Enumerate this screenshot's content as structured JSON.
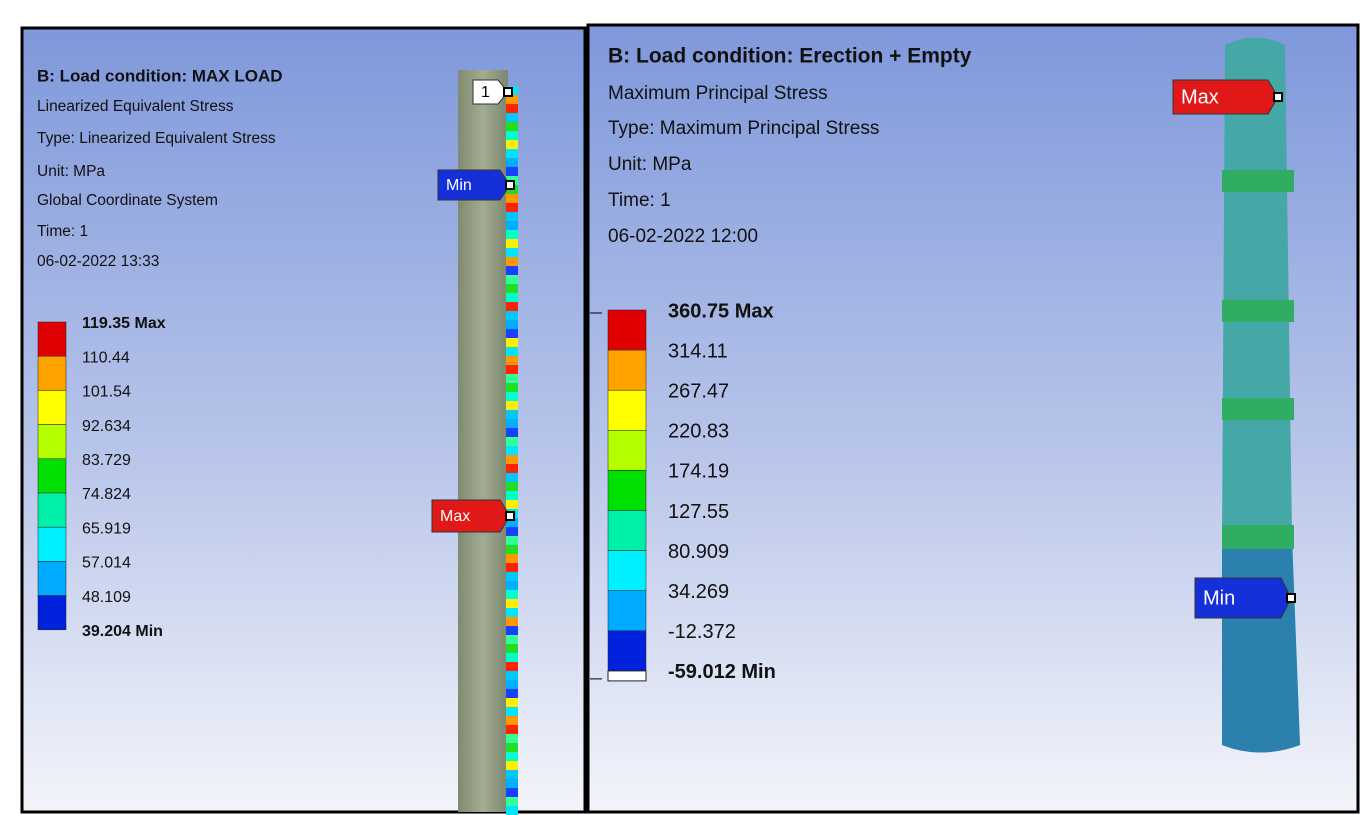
{
  "panels": [
    {
      "title": "B: Load condition: MAX LOAD",
      "lines": [
        "Linearized Equivalent Stress",
        "Type: Linearized Equivalent Stress",
        "Unit: MPa",
        "Global Coordinate System",
        "Time: 1",
        "06-02-2022 13:33"
      ],
      "legend": [
        "119.35 Max",
        "110.44",
        "101.54",
        "92.634",
        "83.729",
        "74.824",
        "65.919",
        "57.014",
        "48.109",
        "39.204 Min"
      ],
      "probes": [
        "1",
        "Min",
        "Max"
      ]
    },
    {
      "title": "B: Load condition: Erection + Empty",
      "lines": [
        "Maximum Principal Stress",
        "Type: Maximum Principal Stress",
        "Unit: MPa",
        "Time: 1",
        "06-02-2022 12:00"
      ],
      "legend": [
        "360.75 Max",
        "314.11",
        "267.47",
        "220.83",
        "174.19",
        "127.55",
        "80.909",
        "34.269",
        "-12.372",
        "-59.012 Min"
      ],
      "probes": [
        "Max",
        "Min"
      ]
    }
  ]
}
